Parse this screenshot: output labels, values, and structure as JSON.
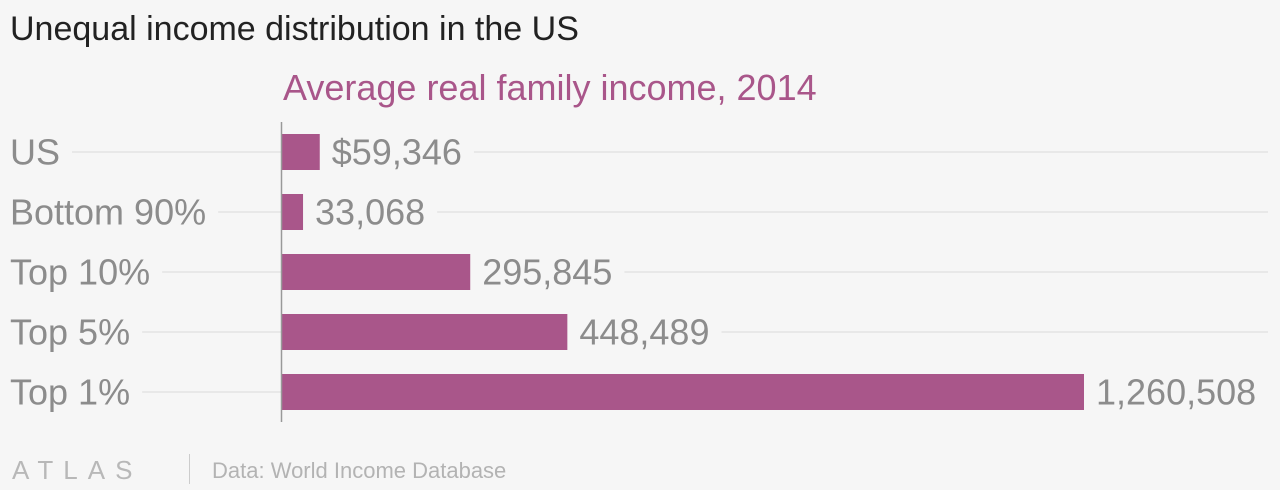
{
  "title": "Unequal income distribution in the US",
  "colors": {
    "bar": "#a9568a",
    "subtitle": "#a9568a",
    "category_label": "#8c8c8c",
    "value_label": "#8c8c8c",
    "gridline": "#e4e4e4",
    "axis": "#999999"
  },
  "chart_data": {
    "type": "bar",
    "orientation": "horizontal",
    "subtitle": "Average real family income, 2014",
    "categories": [
      "US",
      "Bottom 90%",
      "Top 10%",
      "Top 5%",
      "Top 1%"
    ],
    "values": [
      59346,
      33068,
      295845,
      448489,
      1260508
    ],
    "value_labels": [
      "$59,346",
      "33,068",
      "295,845",
      "448,489",
      "1,260,508"
    ],
    "xlim": [
      0,
      1260508
    ],
    "grid": true,
    "legend": "none"
  },
  "footer": {
    "logo": "ATLAS",
    "source": "Data: World Income Database"
  }
}
